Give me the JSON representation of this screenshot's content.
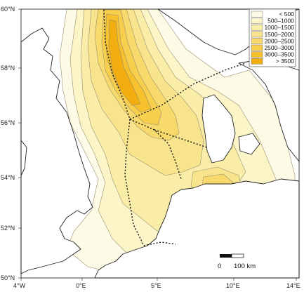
{
  "axes": {
    "lat_labels": [
      "60°N",
      "58°N",
      "56°N",
      "54°N",
      "52°N",
      "50°N"
    ],
    "lon_labels": [
      "4°W",
      "0°E",
      "5°E",
      "10°E",
      "14°E"
    ]
  },
  "legend": {
    "items": [
      {
        "label": "< 500",
        "color": "#fdfbe6"
      },
      {
        "label": "500–1000",
        "color": "#fbf5c8"
      },
      {
        "label": "1000–1500",
        "color": "#f9eda8"
      },
      {
        "label": "1500–2000",
        "color": "#f8e48c"
      },
      {
        "label": "2000–2500",
        "color": "#f8da6c"
      },
      {
        "label": "2500–3000",
        "color": "#f7cf4c"
      },
      {
        "label": "3000–3500",
        "color": "#f6c12c"
      },
      {
        "label": "> 3500",
        "color": "#f2ae10"
      }
    ]
  },
  "scale_bar": {
    "start_label": "0",
    "end_label": "100 km"
  },
  "colors": {
    "land": "#ffffff",
    "sea": "#ffffff",
    "coast": "#222222",
    "contour": "#9a8f70",
    "boundary": "#111111"
  }
}
